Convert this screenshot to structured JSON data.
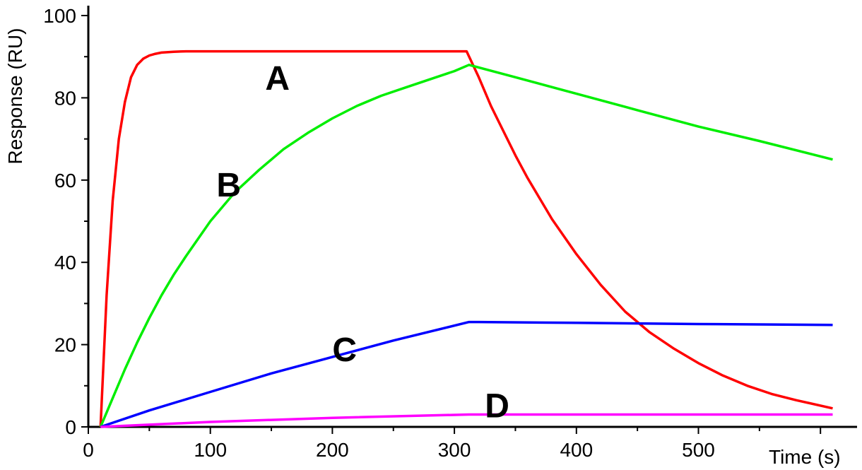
{
  "chart_data": {
    "type": "line",
    "xlabel": "Time (s)",
    "ylabel": "Response (RU)",
    "xlim": [
      0,
      630
    ],
    "ylim": [
      0,
      100
    ],
    "x_ticks": [
      0,
      100,
      200,
      300,
      400,
      500
    ],
    "y_ticks": [
      0,
      20,
      40,
      60,
      80,
      100
    ],
    "grid": false,
    "legend": "none",
    "series": [
      {
        "label": "A",
        "color": "#ff0000",
        "x": [
          10,
          15,
          20,
          25,
          30,
          35,
          40,
          45,
          50,
          55,
          60,
          70,
          80,
          100,
          150,
          200,
          250,
          310,
          320,
          330,
          340,
          350,
          360,
          380,
          400,
          420,
          440,
          460,
          480,
          500,
          520,
          540,
          560,
          580,
          610
        ],
        "y": [
          0,
          32,
          55,
          70,
          79,
          85,
          88,
          89.5,
          90.3,
          90.7,
          91,
          91.2,
          91.3,
          91.3,
          91.3,
          91.3,
          91.3,
          91.3,
          85,
          78,
          72,
          66,
          60.5,
          50.5,
          42,
          34.5,
          28,
          23,
          19,
          15.5,
          12.5,
          10,
          8,
          6.5,
          4.5
        ]
      },
      {
        "label": "B",
        "color": "#00ee00",
        "x": [
          10,
          20,
          30,
          40,
          50,
          60,
          70,
          80,
          100,
          120,
          140,
          160,
          180,
          200,
          220,
          240,
          260,
          280,
          300,
          312,
          350,
          400,
          450,
          500,
          550,
          610
        ],
        "y": [
          0,
          7,
          14,
          20.5,
          26.5,
          32,
          37,
          41.5,
          50,
          57,
          62.5,
          67.5,
          71.5,
          75,
          78,
          80.5,
          82.5,
          84.5,
          86.5,
          88,
          85,
          81,
          77,
          73,
          69.5,
          65
        ]
      },
      {
        "label": "C",
        "color": "#0000ff",
        "x": [
          10,
          50,
          100,
          150,
          200,
          250,
          312,
          320,
          400,
          500,
          610
        ],
        "y": [
          0,
          4,
          8.5,
          13,
          17,
          21,
          25.5,
          25.5,
          25.3,
          25,
          24.8
        ]
      },
      {
        "label": "D",
        "color": "#ff00ff",
        "x": [
          10,
          100,
          200,
          312,
          400,
          500,
          610
        ],
        "y": [
          0,
          1.2,
          2.2,
          3,
          3,
          3,
          3
        ]
      }
    ],
    "annotations": [
      {
        "text": "A",
        "x": 145,
        "y": 82
      },
      {
        "text": "B",
        "x": 105,
        "y": 56
      },
      {
        "text": "C",
        "x": 200,
        "y": 16
      },
      {
        "text": "D",
        "x": 325,
        "y": 2.3
      }
    ]
  }
}
